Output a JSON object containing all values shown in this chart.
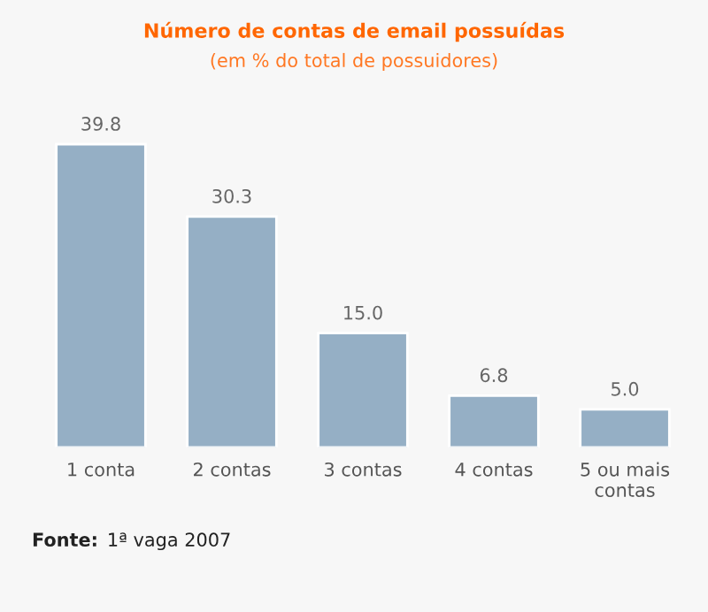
{
  "chart_data": {
    "type": "bar",
    "title": "Número de contas de email possuídas",
    "subtitle": "(em % do total de possuidores)",
    "categories": [
      "1 conta",
      "2 contas",
      "3 contas",
      "4 contas",
      "5 ou mais contas"
    ],
    "values": [
      39.8,
      30.3,
      15.0,
      6.8,
      5.0
    ],
    "value_labels": [
      "39.8",
      "30.3",
      "15.0",
      "6.8",
      "5.0"
    ],
    "color": "#95afc5",
    "annotations": [
      "Fonte: 1ª vaga 2007"
    ]
  }
}
